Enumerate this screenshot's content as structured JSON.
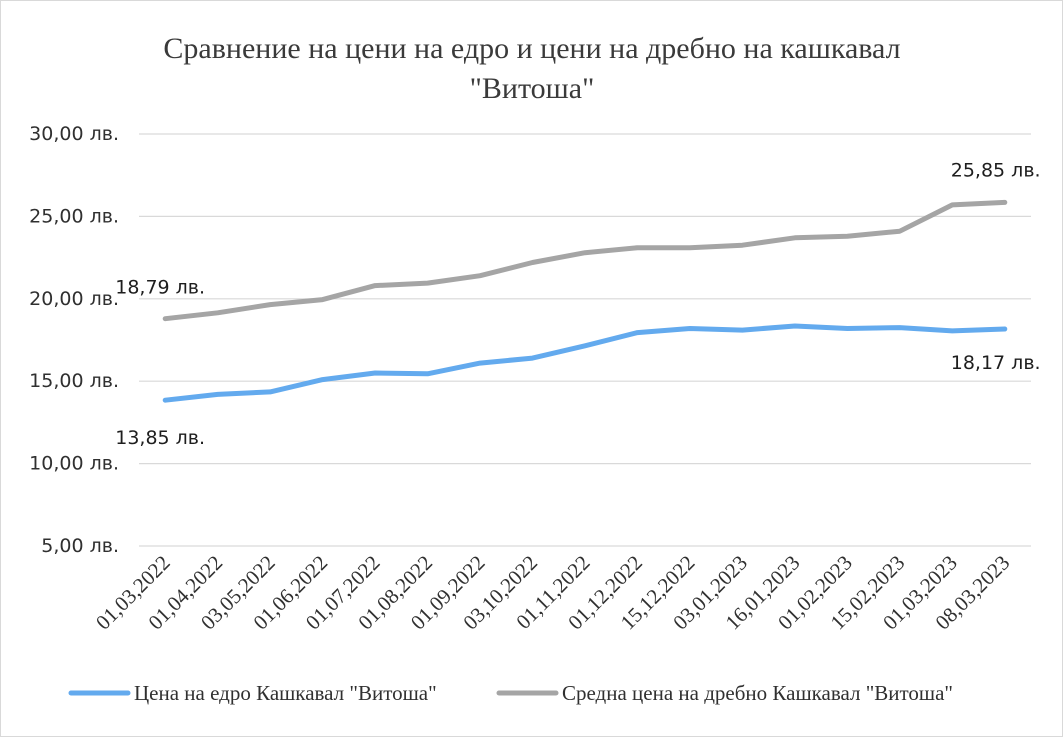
{
  "chart_data": {
    "type": "line",
    "title_line1": "Сравнение на цени на едро и цени на дребно на кашкавал",
    "title_line2": "\"Витоша\"",
    "categories": [
      "01,03,2022",
      "01,04,2022",
      "03,05,2022",
      "01,06,2022",
      "01,07,2022",
      "01,08,2022",
      "01,09,2022",
      "03,10,2022",
      "01,11,2022",
      "01,12,2022",
      "15,12,2022",
      "03,01,2023",
      "16,01,2023",
      "01,02,2023",
      "15,02,2023",
      "01,03,2023",
      "08,03,2023"
    ],
    "ylim": [
      5,
      30
    ],
    "yticks": [
      5,
      10,
      15,
      20,
      25,
      30
    ],
    "ytick_labels": [
      "5,00 лв.",
      "10,00 лв.",
      "15,00 лв.",
      "20,00 лв.",
      "25,00 лв.",
      "30,00 лв."
    ],
    "grid": true,
    "legend_position": "bottom",
    "series": [
      {
        "name": "Цена на едро Кашкавал \"Витоша\"",
        "color": "#63aaee",
        "values": [
          13.85,
          14.2,
          14.35,
          15.1,
          15.5,
          15.45,
          16.1,
          16.4,
          17.15,
          17.95,
          18.2,
          18.1,
          18.35,
          18.2,
          18.25,
          18.05,
          18.17
        ],
        "labels": [
          {
            "index": 0,
            "text": "13,85 лв."
          },
          {
            "index": 16,
            "text": "18,17 лв."
          }
        ]
      },
      {
        "name": "Средна цена на дребно Кашкавал \"Витоша\"",
        "color": "#a5a5a5",
        "values": [
          18.79,
          19.15,
          19.65,
          19.95,
          20.8,
          20.95,
          21.4,
          22.2,
          22.8,
          23.1,
          23.1,
          23.25,
          23.7,
          23.8,
          24.1,
          25.7,
          25.85
        ],
        "labels": [
          {
            "index": 0,
            "text": "18,79 лв."
          },
          {
            "index": 16,
            "text": "25,85 лв."
          }
        ]
      }
    ]
  }
}
